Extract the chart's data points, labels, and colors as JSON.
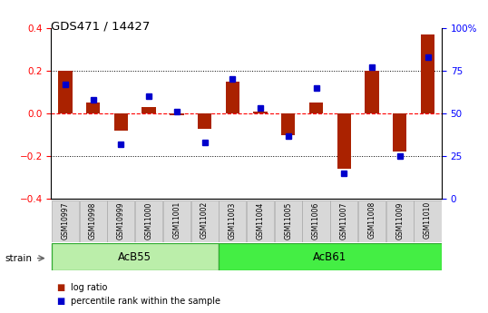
{
  "title": "GDS471 / 14427",
  "samples": [
    "GSM10997",
    "GSM10998",
    "GSM10999",
    "GSM11000",
    "GSM11001",
    "GSM11002",
    "GSM11003",
    "GSM11004",
    "GSM11005",
    "GSM11006",
    "GSM11007",
    "GSM11008",
    "GSM11009",
    "GSM11010"
  ],
  "log_ratio": [
    0.2,
    0.05,
    -0.08,
    0.03,
    -0.01,
    -0.07,
    0.15,
    0.01,
    -0.1,
    0.05,
    -0.26,
    0.2,
    -0.18,
    0.37
  ],
  "percentile": [
    67,
    58,
    32,
    60,
    51,
    33,
    70,
    53,
    37,
    65,
    15,
    77,
    25,
    83
  ],
  "bar_color": "#aa2200",
  "dot_color": "#0000cc",
  "groups": [
    {
      "label": "AcB55",
      "start": 0,
      "end": 5,
      "color": "#bbeeaa"
    },
    {
      "label": "AcB61",
      "start": 6,
      "end": 13,
      "color": "#44ee44"
    }
  ],
  "ylim": [
    -0.4,
    0.4
  ],
  "yticks_left": [
    -0.4,
    -0.2,
    0.0,
    0.2,
    0.4
  ],
  "yticks_right": [
    0,
    25,
    50,
    75,
    100
  ],
  "strain_label": "strain",
  "legend_items": [
    {
      "label": "log ratio",
      "color": "#aa2200"
    },
    {
      "label": "percentile rank within the sample",
      "color": "#0000cc"
    }
  ]
}
